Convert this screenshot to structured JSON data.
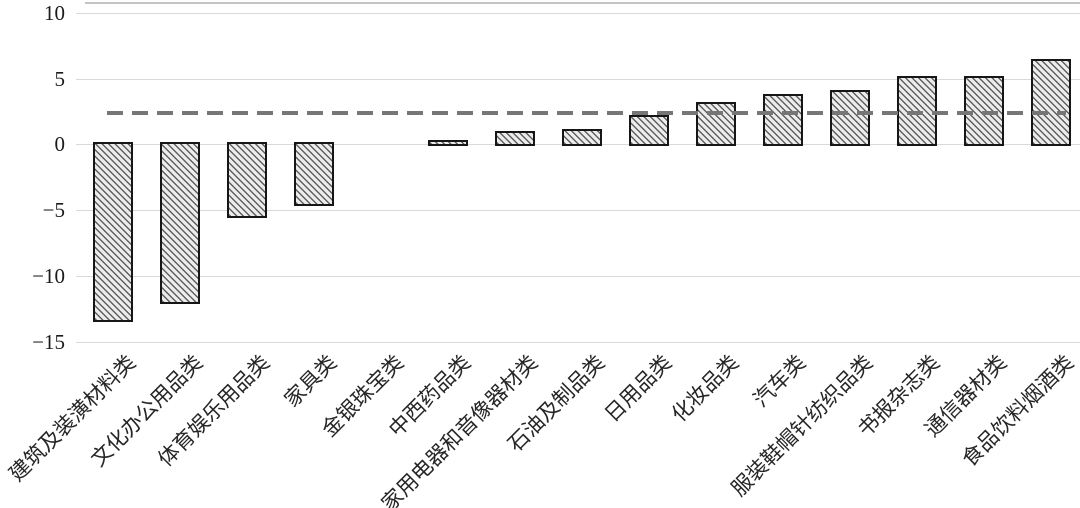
{
  "chart_data": {
    "type": "bar",
    "title": "",
    "xlabel": "",
    "ylabel": "",
    "categories": [
      "建筑及装潢材料类",
      "文化办公用品类",
      "体育娱乐用品类",
      "家具类",
      "金银珠宝类",
      "中西药品类",
      "家用电器和音像器材类",
      "石油及制品类",
      "日用品类",
      "化妆品类",
      "汽车类",
      "服装鞋帽针纺织品类",
      "书报杂志类",
      "通信器材类",
      "食品饮料烟酒类"
    ],
    "values": [
      -13.4,
      -12.0,
      -5.5,
      -4.6,
      0,
      0.1,
      0.8,
      1.0,
      2.0,
      3.0,
      3.6,
      3.9,
      5.0,
      5.0,
      6.3
    ],
    "reference_line_value": 2.4,
    "yticks": [
      10,
      5,
      0,
      -5,
      -10,
      -15
    ],
    "ytick_labels": [
      "10",
      "5",
      "0",
      "−5",
      "−10",
      "−15"
    ],
    "ylim": [
      -15,
      10.7
    ],
    "grid": "horizontal",
    "legend": "none",
    "bar_style": "diagonal-hatch",
    "colors": {
      "bar_hatch_line": "#606060",
      "bar_hatch_bg": "#ececec",
      "bar_border": "#161616",
      "gridline": "#d9d9d9",
      "reference_line": "#767676",
      "text": "#1b1b1b"
    }
  }
}
